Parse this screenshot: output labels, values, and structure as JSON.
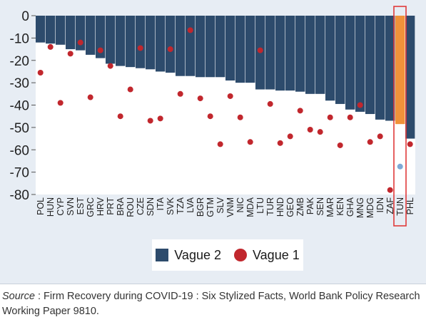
{
  "chart_data": {
    "type": "bar",
    "categories": [
      "POL",
      "HUN",
      "CYP",
      "SVN",
      "EST",
      "GRC",
      "HRV",
      "PRT",
      "BRA",
      "ROU",
      "CZE",
      "SDN",
      "ITA",
      "SVK",
      "TZA",
      "LVA",
      "BGR",
      "GTM",
      "SLV",
      "VNM",
      "NIC",
      "MDA",
      "LTU",
      "TUR",
      "HND",
      "GEO",
      "ZMB",
      "PAK",
      "SEN",
      "MAR",
      "KEN",
      "GHA",
      "MNG",
      "MDG",
      "IDN",
      "ZAF",
      "TUN",
      "PHL"
    ],
    "series": [
      {
        "name": "Vague 2",
        "kind": "bar",
        "color": "#2d4b6c",
        "values": [
          -12,
          -12.5,
          -13,
          -15,
          -15.5,
          -17.5,
          -19,
          -21.5,
          -22.5,
          -23,
          -23.5,
          -24,
          -25,
          -25.5,
          -27,
          -27,
          -27.5,
          -27.5,
          -27.5,
          -29,
          -30,
          -30,
          -33,
          -33,
          -33.5,
          -33.5,
          -34,
          -35,
          -35,
          -38,
          -39.5,
          -42,
          -43,
          -44,
          -46.5,
          -47,
          -48.5,
          -55
        ]
      },
      {
        "name": "Vague 1",
        "kind": "point",
        "color": "#c1272d",
        "values": [
          -25.5,
          -14,
          -39,
          -17,
          -12,
          -36.5,
          -15.5,
          -22.5,
          -45,
          -33,
          -14.5,
          -47,
          -46,
          -15,
          -35,
          -6.5,
          -37,
          -45,
          -57.5,
          -36,
          -45.5,
          -56.5,
          -15.5,
          -39.5,
          -57,
          -54,
          -42.5,
          -51,
          -52,
          -45.5,
          -58,
          -45.5,
          -40,
          -56.5,
          -54,
          -78,
          -67.5,
          -57.5
        ]
      }
    ],
    "highlight": {
      "category": "TUN",
      "bar_color": "#f0923a",
      "point_color": "#7fa9d6",
      "frame_color": "#e03a3a"
    },
    "yticks": [
      0,
      -10,
      -20,
      -30,
      -40,
      -50,
      -60,
      -70,
      -80
    ],
    "ylim": [
      -80,
      0
    ],
    "legend": [
      "Vague 2",
      "Vague 1"
    ],
    "grid": false
  },
  "source": {
    "label": "Source",
    "text": " : Firm Recovery during COVID-19 : Six Stylized Facts, World Bank Policy Research Working Paper 9810."
  }
}
